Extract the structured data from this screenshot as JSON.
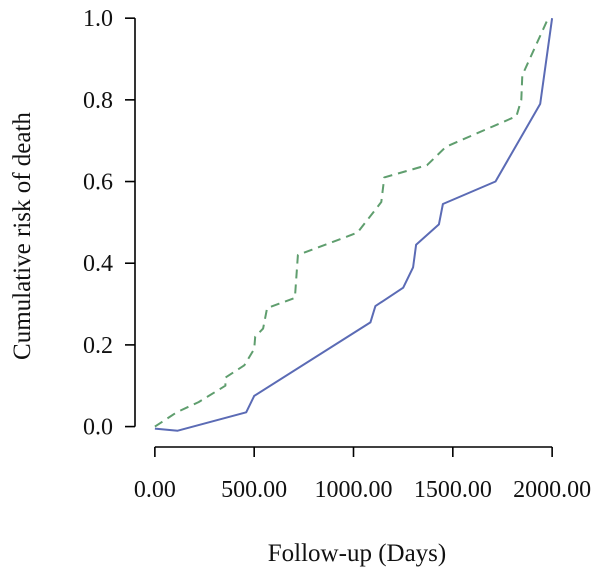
{
  "chart_data": {
    "type": "line",
    "xlabel": "Follow-up (Days)",
    "ylabel": "Cumulative risk of death",
    "xlim": [
      -100,
      2100
    ],
    "ylim": [
      -0.05,
      1.02
    ],
    "x_ticks": [
      0,
      500,
      1000,
      1500,
      2000
    ],
    "x_tick_labels": [
      "0.00",
      "500.00",
      "1000.00",
      "1500.00",
      "2000.00"
    ],
    "y_ticks": [
      0.0,
      0.2,
      0.4,
      0.6,
      0.8,
      1.0
    ],
    "y_tick_labels": [
      "0.0",
      "0.2",
      "0.4",
      "0.6",
      "0.8",
      "1.0"
    ],
    "grid": false,
    "legend": "none",
    "series": [
      {
        "color": "#5b6bb5",
        "dash": "solid",
        "points": [
          [
            0,
            -0.005
          ],
          [
            115,
            -0.01
          ],
          [
            460,
            0.035
          ],
          [
            500,
            0.075
          ],
          [
            1085,
            0.255
          ],
          [
            1110,
            0.295
          ],
          [
            1250,
            0.34
          ],
          [
            1300,
            0.39
          ],
          [
            1315,
            0.445
          ],
          [
            1430,
            0.495
          ],
          [
            1450,
            0.545
          ],
          [
            1715,
            0.6
          ],
          [
            1940,
            0.79
          ],
          [
            2000,
            1.0
          ]
        ]
      },
      {
        "color": "#5f9e6e",
        "dash": "dashed",
        "points": [
          [
            0,
            0.0
          ],
          [
            110,
            0.035
          ],
          [
            220,
            0.06
          ],
          [
            355,
            0.1
          ],
          [
            355,
            0.12
          ],
          [
            450,
            0.15
          ],
          [
            500,
            0.19
          ],
          [
            505,
            0.22
          ],
          [
            545,
            0.24
          ],
          [
            565,
            0.29
          ],
          [
            705,
            0.315
          ],
          [
            720,
            0.42
          ],
          [
            1020,
            0.475
          ],
          [
            1100,
            0.525
          ],
          [
            1140,
            0.55
          ],
          [
            1155,
            0.61
          ],
          [
            1370,
            0.64
          ],
          [
            1465,
            0.685
          ],
          [
            1820,
            0.76
          ],
          [
            1845,
            0.8
          ],
          [
            1850,
            0.86
          ],
          [
            1980,
            1.0
          ]
        ]
      }
    ]
  }
}
